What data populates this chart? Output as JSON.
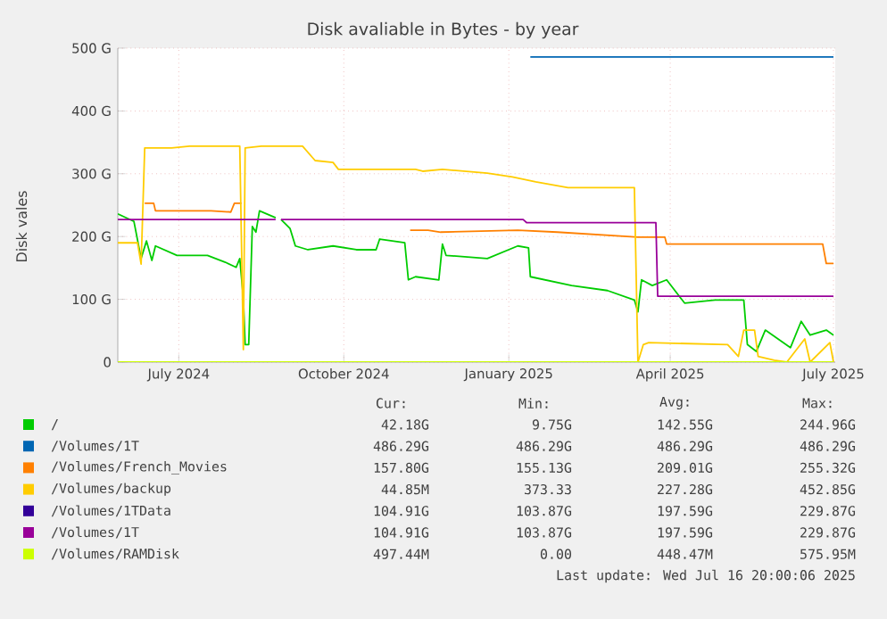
{
  "chart_data": {
    "type": "line",
    "title": "Disk avaliable in Bytes - by year",
    "ylabel": "Disk vales",
    "xlim": [
      "2024-06-11",
      "2025-07-16"
    ],
    "ylim": [
      0,
      500
    ],
    "xticks": [
      {
        "value": "2024-07-15",
        "label": "July 2024"
      },
      {
        "value": "2024-10-15",
        "label": "October 2024"
      },
      {
        "value": "2025-01-15",
        "label": "January 2025"
      },
      {
        "value": "2025-04-15",
        "label": "April 2025"
      },
      {
        "value": "2025-07-15",
        "label": "July 2025"
      }
    ],
    "yticks": [
      0,
      {
        "value": 100,
        "label": "100 G"
      },
      {
        "value": 200,
        "label": "200 G"
      },
      {
        "value": 300,
        "label": "300 G"
      },
      {
        "value": 400,
        "label": "400 G"
      },
      {
        "value": 500,
        "label": "500 G"
      }
    ],
    "grid": true,
    "legend": "bottom",
    "line_style": "solid",
    "marker": "none",
    "series": [
      {
        "name": "/",
        "color": "#00cc00",
        "x": [
          "2024-06-11",
          "2024-06-20",
          "2024-06-24",
          "2024-06-27",
          "2024-06-30",
          "2024-07-02",
          "2024-07-14",
          "2024-07-31",
          "2024-08-10",
          "2024-08-16",
          "2024-08-18",
          "2024-08-20",
          "2024-08-21",
          "2024-08-23",
          "2024-08-25",
          "2024-08-27",
          "2024-08-29",
          "2024-09-07",
          "2024-09-08",
          "2024-09-10",
          "2024-09-15",
          "2024-09-18",
          "2024-09-25",
          "2024-10-09",
          "2024-10-22",
          "2024-11-02",
          "2024-11-04",
          "2024-11-18",
          "2024-11-20",
          "2024-11-24",
          "2024-12-07",
          "2024-12-09",
          "2024-12-11",
          "2025-01-03",
          "2025-01-20",
          "2025-01-26",
          "2025-01-27",
          "2025-02-19",
          "2025-03-11",
          "2025-03-26",
          "2025-03-28",
          "2025-03-30",
          "2025-04-05",
          "2025-04-13",
          "2025-04-23",
          "2025-05-10",
          "2025-05-26",
          "2025-05-28",
          "2025-06-02",
          "2025-06-07",
          "2025-06-21",
          "2025-06-27",
          "2025-07-02",
          "2025-07-11",
          "2025-07-15"
        ],
        "values": [
          236,
          224,
          165,
          193,
          162,
          185,
          170,
          170,
          159,
          151,
          165,
          102,
          28,
          28,
          216,
          207,
          241,
          230,
          null,
          227,
          213,
          185,
          179,
          185,
          179,
          179,
          196,
          190,
          131,
          136,
          131,
          188,
          170,
          165,
          185,
          182,
          136,
          122,
          114,
          99,
          80,
          131,
          122,
          131,
          94,
          99,
          99,
          28,
          17,
          51,
          23,
          65,
          43,
          51,
          43
        ]
      },
      {
        "name": "/Volumes/1T",
        "color": "#0066b3",
        "x": [
          "2025-01-27",
          "2025-07-15"
        ],
        "values": [
          486,
          486
        ]
      },
      {
        "name": "/Volumes/French_Movies",
        "color": "#ff8000",
        "x": [
          "2024-06-26",
          "2024-07-01",
          "2024-07-02",
          "2024-08-02",
          "2024-08-13",
          "2024-08-15",
          "2024-08-19",
          "2024-08-20",
          "2024-11-21",
          "2024-12-01",
          "2024-12-08",
          "2025-01-20",
          "2025-02-11",
          "2025-03-28",
          "2025-04-12",
          "2025-04-13",
          "2025-07-09",
          "2025-07-11",
          "2025-07-15"
        ],
        "values": [
          253,
          253,
          241,
          241,
          239,
          253,
          253,
          null,
          210,
          210,
          207,
          210,
          207,
          199,
          199,
          188,
          188,
          157,
          157
        ]
      },
      {
        "name": "/Volumes/backup",
        "color": "#ffcc00",
        "x": [
          "2024-06-11",
          "2024-06-22",
          "2024-06-24",
          "2024-06-26",
          "2024-07-11",
          "2024-07-21",
          "2024-08-18",
          "2024-08-20",
          "2024-08-21",
          "2024-08-30",
          "2024-09-08",
          "2024-09-22",
          "2024-09-29",
          "2024-10-09",
          "2024-10-12",
          "2024-11-24",
          "2024-11-28",
          "2024-12-09",
          "2025-01-03",
          "2025-01-17",
          "2025-01-30",
          "2025-02-17",
          "2025-03-26",
          "2025-03-28",
          "2025-03-31",
          "2025-04-03",
          "2025-05-17",
          "2025-05-23",
          "2025-05-26",
          "2025-06-01",
          "2025-06-03",
          "2025-06-12",
          "2025-06-19",
          "2025-06-29",
          "2025-07-02",
          "2025-07-13",
          "2025-07-15"
        ],
        "values": [
          190,
          190,
          156,
          341,
          341,
          344,
          344,
          20,
          341,
          344,
          344,
          344,
          321,
          318,
          307,
          307,
          304,
          307,
          301,
          295,
          287,
          278,
          278,
          0,
          28,
          31,
          28,
          9,
          51,
          51,
          9,
          3,
          0,
          37,
          0,
          31,
          0
        ]
      },
      {
        "name": "/Volumes/1TData",
        "color": "#330099"
      },
      {
        "name": "/Volumes/1T",
        "color": "#990099",
        "x": [
          "2024-06-11",
          "2024-09-07",
          "2024-09-08",
          "2024-09-10",
          "2025-01-23",
          "2025-01-25",
          "2025-04-07",
          "2025-04-08",
          "2025-07-15"
        ],
        "values": [
          227,
          227,
          null,
          227,
          227,
          222,
          222,
          105,
          105
        ]
      },
      {
        "name": "/Volumes/RAMDisk",
        "color": "#ccff00",
        "x": [
          "2024-06-11",
          "2025-07-15"
        ],
        "values": [
          0,
          0
        ]
      }
    ],
    "annotations": [
      "Cur:",
      "Min:",
      "Avg:",
      "Max:",
      "42.18G",
      "9.75G",
      "142.55G",
      "244.96G",
      "486.29G",
      "486.29G",
      "486.29G",
      "486.29G",
      "157.80G",
      "155.13G",
      "209.01G",
      "255.32G",
      "44.85M",
      "373.33",
      "227.28G",
      "452.85G",
      "104.91G",
      "103.87G",
      "197.59G",
      "229.87G",
      "104.91G",
      "103.87G",
      "197.59G",
      "229.87G",
      "497.44M",
      "0.00",
      "448.47M",
      "575.95M",
      "Last update: Wed Jul 16 20:00:06 2025"
    ]
  }
}
